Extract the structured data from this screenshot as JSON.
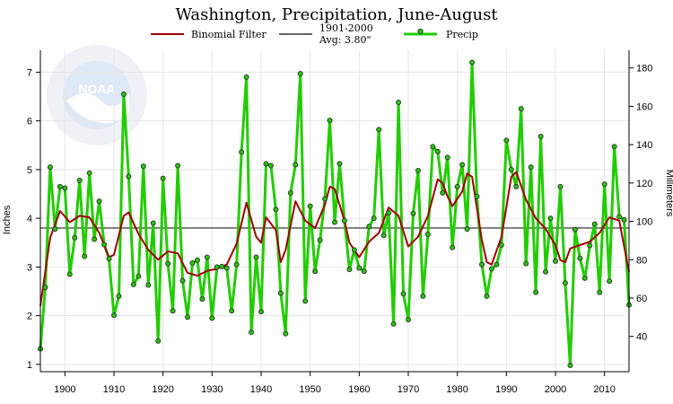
{
  "chart_data": {
    "type": "line",
    "title": "Washington, Precipitation, June-August",
    "ylabel": "Inches",
    "ylabel_right": "Millimeters",
    "xlim": [
      1895,
      2015
    ],
    "ylim": [
      0.85,
      7.45
    ],
    "x_ticks": [
      1900,
      1910,
      1920,
      1930,
      1940,
      1950,
      1960,
      1970,
      1980,
      1990,
      2000,
      2010
    ],
    "y_ticks": [
      1,
      2,
      3,
      4,
      5,
      6,
      7
    ],
    "y_ticks_right_mm": [
      40,
      60,
      80,
      100,
      120,
      140,
      160,
      180
    ],
    "grid": true,
    "legend": {
      "filter_label": "Binomial Filter",
      "avg_label_line1": "1901-2000",
      "avg_label_line2": "Avg: 3.80\"",
      "precip_label": "Precip"
    },
    "average": 3.8,
    "colors": {
      "precip": "#22cc00",
      "filter": "#a00000",
      "average": "#666666",
      "marker": "#333333"
    },
    "series": [
      {
        "name": "Precip",
        "x": [
          1895,
          1896,
          1897,
          1898,
          1899,
          1900,
          1901,
          1902,
          1903,
          1904,
          1905,
          1906,
          1907,
          1908,
          1909,
          1910,
          1911,
          1912,
          1913,
          1914,
          1915,
          1916,
          1917,
          1918,
          1919,
          1920,
          1921,
          1922,
          1923,
          1924,
          1925,
          1926,
          1927,
          1928,
          1929,
          1930,
          1931,
          1932,
          1933,
          1934,
          1935,
          1936,
          1937,
          1938,
          1939,
          1940,
          1941,
          1942,
          1943,
          1944,
          1945,
          1946,
          1947,
          1948,
          1949,
          1950,
          1951,
          1952,
          1953,
          1954,
          1955,
          1956,
          1957,
          1958,
          1959,
          1960,
          1961,
          1962,
          1963,
          1964,
          1965,
          1966,
          1967,
          1968,
          1969,
          1970,
          1971,
          1972,
          1973,
          1974,
          1975,
          1976,
          1977,
          1978,
          1979,
          1980,
          1981,
          1982,
          1983,
          1984,
          1985,
          1986,
          1987,
          1988,
          1989,
          1990,
          1991,
          1992,
          1993,
          1994,
          1995,
          1996,
          1997,
          1998,
          1999,
          2000,
          2001,
          2002,
          2003,
          2004,
          2005,
          2006,
          2007,
          2008,
          2009,
          2010,
          2011,
          2012,
          2013,
          2014,
          2015
        ],
        "values": [
          1.32,
          2.58,
          5.05,
          3.78,
          4.65,
          4.62,
          2.85,
          3.6,
          4.78,
          3.22,
          4.93,
          3.57,
          4.35,
          3.46,
          3.17,
          2.01,
          2.4,
          6.55,
          4.86,
          2.64,
          2.81,
          5.07,
          2.63,
          3.9,
          1.48,
          4.82,
          3.07,
          2.1,
          5.08,
          2.72,
          1.97,
          3.08,
          3.14,
          2.34,
          3.2,
          1.95,
          3.0,
          3.01,
          2.98,
          2.1,
          3.05,
          5.36,
          6.9,
          1.66,
          3.2,
          2.08,
          5.12,
          5.08,
          4.18,
          2.46,
          1.63,
          4.52,
          5.1,
          6.97,
          2.3,
          4.25,
          2.91,
          3.55,
          4.4,
          6.01,
          3.92,
          5.12,
          3.95,
          2.95,
          3.35,
          2.98,
          2.91,
          3.83,
          4.0,
          5.82,
          3.65,
          4.11,
          1.83,
          6.38,
          2.45,
          1.92,
          4.1,
          4.98,
          2.4,
          3.67,
          5.47,
          5.37,
          4.52,
          5.25,
          3.4,
          4.65,
          5.1,
          3.78,
          7.2,
          4.45,
          3.05,
          2.4,
          2.96,
          3.05,
          3.45,
          5.6,
          5.0,
          4.65,
          6.25,
          3.07,
          5.05,
          2.48,
          5.68,
          2.9,
          4.0,
          3.12,
          4.65,
          2.67,
          0.98,
          3.77,
          3.18,
          2.77,
          3.44,
          3.88,
          2.48,
          4.7,
          2.71,
          5.47,
          4.03,
          3.97,
          2.22
        ]
      },
      {
        "name": "Binomial Filter",
        "x": [
          1895,
          1897,
          1899,
          1901,
          1903,
          1905,
          1907,
          1909,
          1910,
          1912,
          1913,
          1915,
          1917,
          1919,
          1921,
          1923,
          1925,
          1927,
          1929,
          1931,
          1933,
          1935,
          1937,
          1939,
          1940,
          1941,
          1943,
          1944,
          1945,
          1947,
          1949,
          1951,
          1953,
          1954,
          1955,
          1957,
          1958,
          1959,
          1960,
          1962,
          1964,
          1966,
          1968,
          1970,
          1972,
          1974,
          1976,
          1977,
          1978,
          1979,
          1981,
          1982,
          1983,
          1985,
          1986,
          1987,
          1989,
          1991,
          1992,
          1994,
          1996,
          1998,
          2000,
          2001,
          2002,
          2003,
          2005,
          2007,
          2009,
          2011,
          2013,
          2015
        ],
        "values": [
          2.2,
          3.6,
          4.15,
          3.92,
          4.05,
          4.02,
          3.7,
          3.2,
          3.25,
          4.05,
          4.12,
          3.68,
          3.35,
          3.15,
          3.32,
          3.28,
          2.88,
          2.82,
          2.92,
          2.96,
          3.05,
          3.48,
          4.32,
          3.62,
          3.5,
          4.02,
          3.76,
          3.1,
          3.35,
          4.35,
          3.95,
          3.8,
          4.28,
          4.65,
          4.6,
          3.95,
          3.5,
          3.35,
          3.2,
          3.52,
          3.7,
          4.22,
          4.05,
          3.42,
          3.62,
          4.05,
          4.8,
          4.72,
          4.45,
          4.25,
          4.55,
          4.92,
          4.85,
          3.55,
          3.1,
          3.05,
          3.62,
          4.85,
          4.95,
          4.38,
          4.0,
          3.78,
          3.45,
          3.14,
          3.1,
          3.38,
          3.45,
          3.52,
          3.7,
          4.02,
          3.95,
          2.9
        ]
      }
    ]
  }
}
